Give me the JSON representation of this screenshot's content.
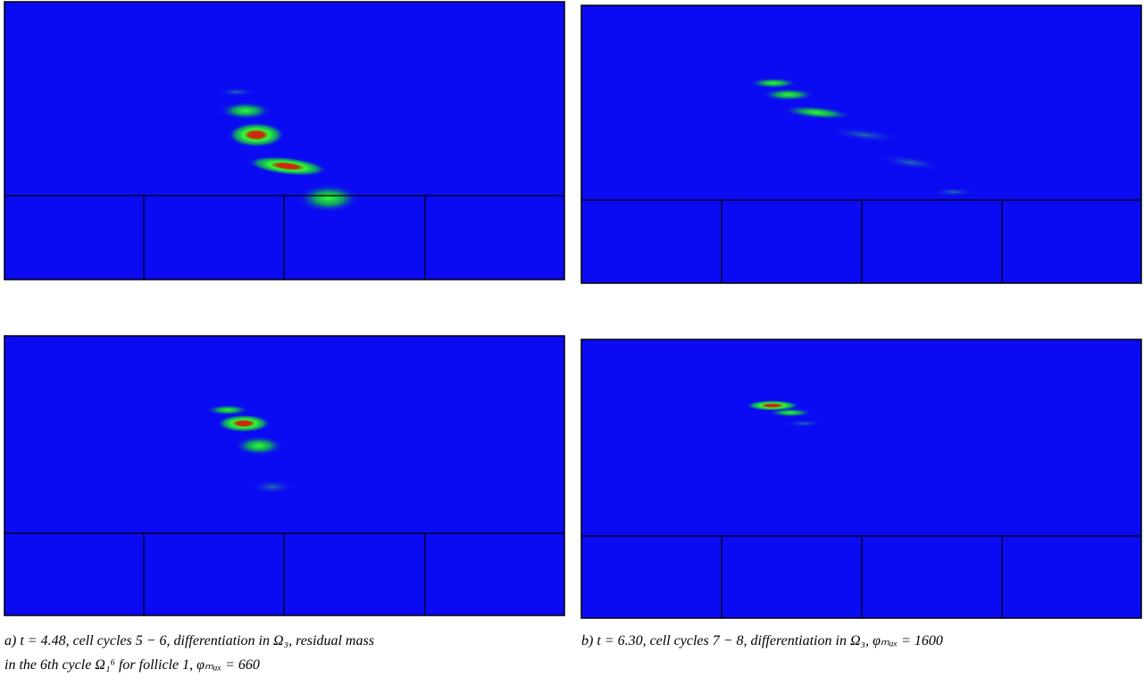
{
  "captions": [
    {
      "lines": [
        "a) t = 4.48, cell cycles 5 − 6, differentiation in Ω₃, residual mass",
        "in the 6th cycle Ω₁⁶ for follicle 1, φₘₐₓ = 660"
      ]
    },
    {
      "lines": [
        "b) t = 6.30, cell cycles 7 − 8, differentiation in Ω₃, φₘₐₓ = 1600"
      ]
    }
  ]
}
